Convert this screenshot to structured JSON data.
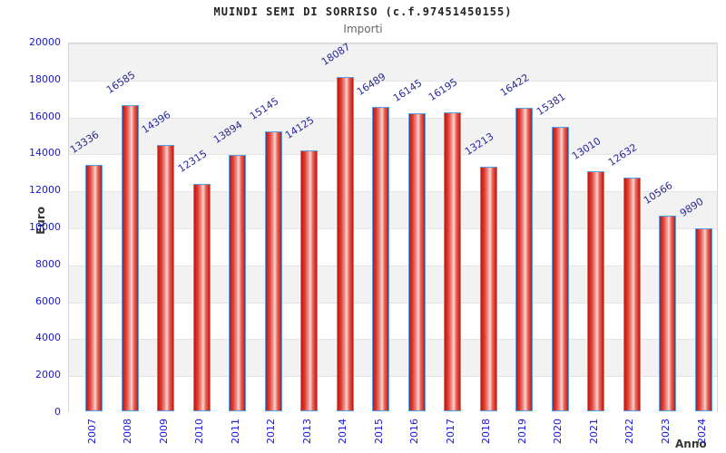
{
  "chart_data": {
    "type": "bar",
    "title": "MUINDI SEMI DI SORRISO (c.f.97451450155)",
    "subtitle": "Importi",
    "xlabel": "Anno",
    "ylabel": "Euro",
    "categories": [
      "2007",
      "2008",
      "2009",
      "2010",
      "2011",
      "2012",
      "2013",
      "2014",
      "2015",
      "2016",
      "2017",
      "2018",
      "2019",
      "2020",
      "2021",
      "2022",
      "2023",
      "2024"
    ],
    "values": [
      13336,
      16585,
      14396,
      12315,
      13894,
      15145,
      14125,
      18087,
      16489,
      16145,
      16195,
      13213,
      16422,
      15381,
      13010,
      12632,
      10566,
      9890
    ],
    "ylim": [
      0,
      20000
    ],
    "ytick_step": 2000,
    "grid": "horizontal-alternating-bands",
    "legend": null,
    "colors": {
      "bar_fill_dark": "#c2180e",
      "bar_fill_light": "#fbd8d4",
      "bar_border": "#58a0e4",
      "value_label": "#28289b",
      "tick_label": "#1515e0",
      "band_gray": "#f2f2f2",
      "band_white": "#ffffff",
      "axis_title": "#333333",
      "title": "#222222",
      "subtitle": "#666666"
    }
  }
}
